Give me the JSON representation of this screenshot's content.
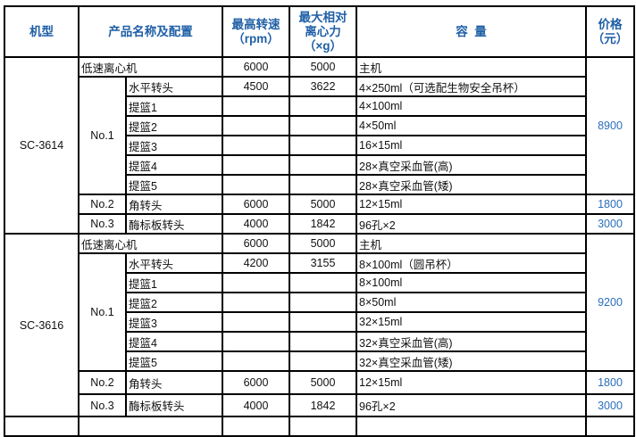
{
  "header": {
    "model": "机型",
    "product": "产品名称及配置",
    "speed": "最高转速\n（rpm）",
    "rcf": "最大相对\n离心力\n（×g）",
    "capacity": "容  量",
    "price": "价格\n（元）"
  },
  "colors": {
    "header_text": "#1f5fa6",
    "price_text": "#2a6ebb",
    "border": "#000000"
  },
  "models": [
    {
      "model": "SC-3614",
      "host": {
        "name": "低速离心机",
        "speed": "6000",
        "rcf": "5000",
        "capacity": "主机"
      },
      "price_main": "8900",
      "rotors": [
        {
          "no": "No.1",
          "items": [
            {
              "name": "水平转头",
              "speed": "4500",
              "rcf": "3622",
              "capacity": "4×250ml（可选配生物安全吊杯）"
            },
            {
              "name": "提篮1",
              "speed": "",
              "rcf": "",
              "capacity": "4×100ml"
            },
            {
              "name": "提篮2",
              "speed": "",
              "rcf": "",
              "capacity": "4×50ml"
            },
            {
              "name": "提篮3",
              "speed": "",
              "rcf": "",
              "capacity": "16×15ml"
            },
            {
              "name": "提篮4",
              "speed": "",
              "rcf": "",
              "capacity": "28×真空采血管(高)"
            },
            {
              "name": "提篮5",
              "speed": "",
              "rcf": "",
              "capacity": "28×真空采血管(矮)"
            }
          ]
        },
        {
          "no": "No.2",
          "price": "1800",
          "items": [
            {
              "name": "角转头",
              "speed": "6000",
              "rcf": "5000",
              "capacity": "12×15ml"
            }
          ]
        },
        {
          "no": "No.3",
          "price": "3000",
          "items": [
            {
              "name": "酶标板转头",
              "speed": "4000",
              "rcf": "1842",
              "capacity": "96孔×2"
            }
          ]
        }
      ]
    },
    {
      "model": "SC-3616",
      "host": {
        "name": "低速离心机",
        "speed": "6000",
        "rcf": "5000",
        "capacity": "主机"
      },
      "price_main": "9200",
      "rotors": [
        {
          "no": "No.1",
          "items": [
            {
              "name": "水平转头",
              "speed": "4200",
              "rcf": "3155",
              "capacity": "8×100ml（圆吊杯）"
            },
            {
              "name": "提篮1",
              "speed": "",
              "rcf": "",
              "capacity": "8×100ml"
            },
            {
              "name": "提篮2",
              "speed": "",
              "rcf": "",
              "capacity": "8×50ml"
            },
            {
              "name": "提篮3",
              "speed": "",
              "rcf": "",
              "capacity": "32×15ml"
            },
            {
              "name": "提篮4",
              "speed": "",
              "rcf": "",
              "capacity": "32×真空采血管(高)"
            },
            {
              "name": "提篮5",
              "speed": "",
              "rcf": "",
              "capacity": "32×真空采血管(矮)"
            }
          ]
        },
        {
          "no": "No.2",
          "price": "1800",
          "items": [
            {
              "name": "角转头",
              "speed": "6000",
              "rcf": "5000",
              "capacity": "12×15ml"
            }
          ]
        },
        {
          "no": "No.3",
          "price": "3000",
          "items": [
            {
              "name": "酶标板转头",
              "speed": "4000",
              "rcf": "1842",
              "capacity": "96孔×2"
            }
          ]
        }
      ]
    }
  ]
}
